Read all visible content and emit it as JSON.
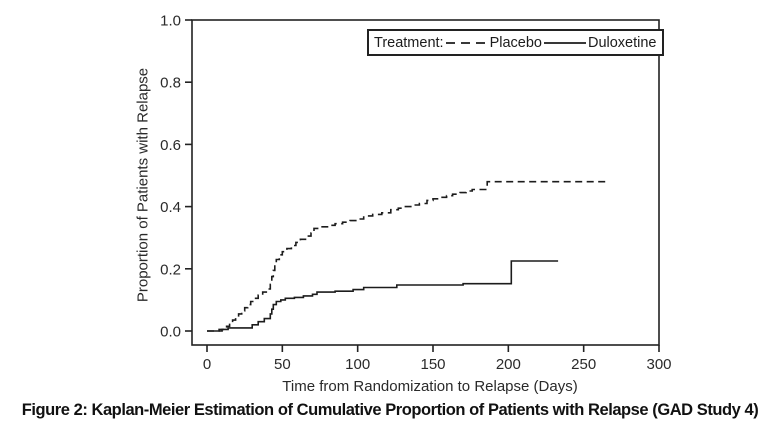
{
  "figure": {
    "caption": "Figure 2: Kaplan-Meier Estimation of Cumulative Proportion of Patients with Relapse (GAD Study 4)"
  },
  "legend": {
    "title": "Treatment:",
    "entries": [
      {
        "label": "Placebo",
        "line_style": "dashed"
      },
      {
        "label": "Duloxetine",
        "line_style": "solid"
      }
    ]
  },
  "chart_data": {
    "type": "line",
    "subtype": "kaplan-meier-step",
    "title": "Figure 2: Kaplan-Meier Estimation of Cumulative Proportion of Patients with Relapse (GAD Study 4)",
    "xlabel": "Time from Randomization to Relapse (Days)",
    "ylabel": "Proportion of Patients with Relapse",
    "xlim": [
      0,
      300
    ],
    "ylim": [
      0.0,
      1.0
    ],
    "x_ticks": [
      "0",
      "50",
      "100",
      "150",
      "200",
      "250",
      "300"
    ],
    "y_ticks": [
      "1.0",
      "0.8",
      "0.6",
      "0.4",
      "0.2",
      "0.0"
    ],
    "grid": false,
    "legend_position": "top-right-inside",
    "line_color": "#1c1c1c",
    "series": [
      {
        "name": "Placebo",
        "line_style": "dashed",
        "points": [
          [
            0,
            0
          ],
          [
            10,
            0.005
          ],
          [
            13,
            0.015
          ],
          [
            15,
            0.025
          ],
          [
            17,
            0.035
          ],
          [
            19,
            0.045
          ],
          [
            21,
            0.055
          ],
          [
            23,
            0.065
          ],
          [
            25,
            0.075
          ],
          [
            27,
            0.085
          ],
          [
            29,
            0.095
          ],
          [
            31,
            0.105
          ],
          [
            34,
            0.115
          ],
          [
            37,
            0.125
          ],
          [
            40,
            0.135
          ],
          [
            42,
            0.15
          ],
          [
            43,
            0.175
          ],
          [
            44,
            0.195
          ],
          [
            45,
            0.215
          ],
          [
            46,
            0.23
          ],
          [
            48,
            0.245
          ],
          [
            50,
            0.255
          ],
          [
            53,
            0.265
          ],
          [
            56,
            0.275
          ],
          [
            59,
            0.285
          ],
          [
            62,
            0.295
          ],
          [
            66,
            0.305
          ],
          [
            69,
            0.315
          ],
          [
            71,
            0.33
          ],
          [
            75,
            0.335
          ],
          [
            80,
            0.34
          ],
          [
            85,
            0.345
          ],
          [
            90,
            0.35
          ],
          [
            95,
            0.355
          ],
          [
            100,
            0.36
          ],
          [
            104,
            0.37
          ],
          [
            110,
            0.375
          ],
          [
            116,
            0.38
          ],
          [
            122,
            0.39
          ],
          [
            127,
            0.395
          ],
          [
            130,
            0.4
          ],
          [
            136,
            0.405
          ],
          [
            141,
            0.41
          ],
          [
            146,
            0.42
          ],
          [
            150,
            0.425
          ],
          [
            155,
            0.43
          ],
          [
            159,
            0.435
          ],
          [
            163,
            0.44
          ],
          [
            168,
            0.445
          ],
          [
            172,
            0.45
          ],
          [
            176,
            0.455
          ],
          [
            186,
            0.48
          ],
          [
            265,
            0.48
          ]
        ]
      },
      {
        "name": "Duloxetine",
        "line_style": "solid",
        "points": [
          [
            0,
            0
          ],
          [
            8,
            0.005
          ],
          [
            14,
            0.01
          ],
          [
            30,
            0.02
          ],
          [
            34,
            0.03
          ],
          [
            38,
            0.04
          ],
          [
            42,
            0.055
          ],
          [
            43,
            0.07
          ],
          [
            44,
            0.085
          ],
          [
            46,
            0.095
          ],
          [
            49,
            0.1
          ],
          [
            52,
            0.105
          ],
          [
            58,
            0.108
          ],
          [
            64,
            0.113
          ],
          [
            70,
            0.118
          ],
          [
            73,
            0.125
          ],
          [
            85,
            0.128
          ],
          [
            97,
            0.133
          ],
          [
            104,
            0.14
          ],
          [
            126,
            0.148
          ],
          [
            170,
            0.152
          ],
          [
            202,
            0.225
          ],
          [
            233,
            0.225
          ]
        ]
      }
    ]
  }
}
